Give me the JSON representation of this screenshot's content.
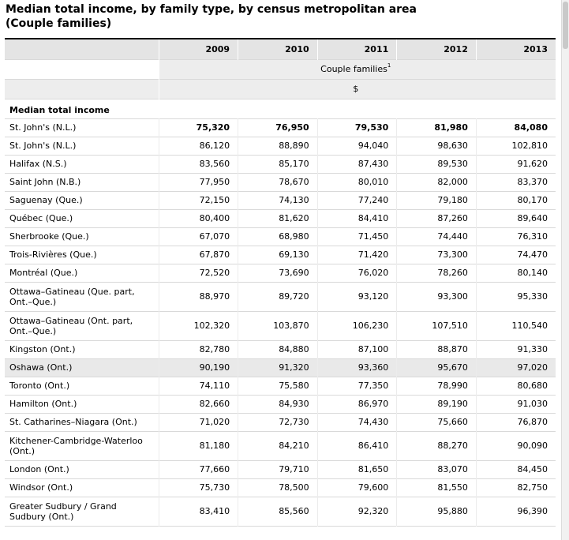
{
  "caption": {
    "line1": "Median total income, by family type, by census metropolitan area",
    "line2": "(Couple families)"
  },
  "table": {
    "years": [
      "2009",
      "2010",
      "2011",
      "2012",
      "2013"
    ],
    "family_type": "Couple families",
    "family_type_footnote": "1",
    "unit": "$",
    "section_label": "Median total income",
    "rows": [
      {
        "label": "St. John's (N.L.)",
        "values": [
          "75,320",
          "76,950",
          "79,530",
          "81,980",
          "84,080"
        ],
        "bold": true
      },
      {
        "label": "St. John's (N.L.)",
        "values": [
          "86,120",
          "88,890",
          "94,040",
          "98,630",
          "102,810"
        ]
      },
      {
        "label": "Halifax (N.S.)",
        "values": [
          "83,560",
          "85,170",
          "87,430",
          "89,530",
          "91,620"
        ]
      },
      {
        "label": "Saint John (N.B.)",
        "values": [
          "77,950",
          "78,670",
          "80,010",
          "82,000",
          "83,370"
        ]
      },
      {
        "label": "Saguenay (Que.)",
        "values": [
          "72,150",
          "74,130",
          "77,240",
          "79,180",
          "80,170"
        ]
      },
      {
        "label": "Québec (Que.)",
        "values": [
          "80,400",
          "81,620",
          "84,410",
          "87,260",
          "89,640"
        ]
      },
      {
        "label": "Sherbrooke (Que.)",
        "values": [
          "67,070",
          "68,980",
          "71,450",
          "74,440",
          "76,310"
        ]
      },
      {
        "label": "Trois-Rivières (Que.)",
        "values": [
          "67,870",
          "69,130",
          "71,420",
          "73,300",
          "74,470"
        ]
      },
      {
        "label": "Montréal (Que.)",
        "values": [
          "72,520",
          "73,690",
          "76,020",
          "78,260",
          "80,140"
        ]
      },
      {
        "label": "Ottawa–Gatineau (Que. part, Ont.–Que.)",
        "values": [
          "88,970",
          "89,720",
          "93,120",
          "93,300",
          "95,330"
        ],
        "tall": true
      },
      {
        "label": "Ottawa–Gatineau (Ont. part, Ont.–Que.)",
        "values": [
          "102,320",
          "103,870",
          "106,230",
          "107,510",
          "110,540"
        ],
        "tall": true
      },
      {
        "label": "Kingston (Ont.)",
        "values": [
          "82,780",
          "84,880",
          "87,100",
          "88,870",
          "91,330"
        ]
      },
      {
        "label": "Oshawa (Ont.)",
        "values": [
          "90,190",
          "91,320",
          "93,360",
          "95,670",
          "97,020"
        ],
        "highlight": true
      },
      {
        "label": "Toronto (Ont.)",
        "values": [
          "74,110",
          "75,580",
          "77,350",
          "78,990",
          "80,680"
        ]
      },
      {
        "label": "Hamilton (Ont.)",
        "values": [
          "82,660",
          "84,930",
          "86,970",
          "89,190",
          "91,030"
        ]
      },
      {
        "label": "St. Catharines–Niagara (Ont.)",
        "values": [
          "71,020",
          "72,730",
          "74,430",
          "75,660",
          "76,870"
        ]
      },
      {
        "label": "Kitchener-Cambridge-Waterloo (Ont.)",
        "values": [
          "81,180",
          "84,210",
          "86,410",
          "88,270",
          "90,090"
        ],
        "tall": true
      },
      {
        "label": "London (Ont.)",
        "values": [
          "77,660",
          "79,710",
          "81,650",
          "83,070",
          "84,450"
        ]
      },
      {
        "label": "Windsor (Ont.)",
        "values": [
          "75,730",
          "78,500",
          "79,600",
          "81,550",
          "82,750"
        ]
      },
      {
        "label": "Greater Sudbury / Grand Sudbury (Ont.)",
        "values": [
          "83,410",
          "85,560",
          "92,320",
          "95,880",
          "96,390"
        ],
        "tall": true
      }
    ]
  },
  "colors": {
    "header_bg": "#e4e4e4",
    "subheader_bg": "#ededed",
    "highlight_row_bg": "#e9e9e9",
    "rule": "#d9d9d9"
  }
}
